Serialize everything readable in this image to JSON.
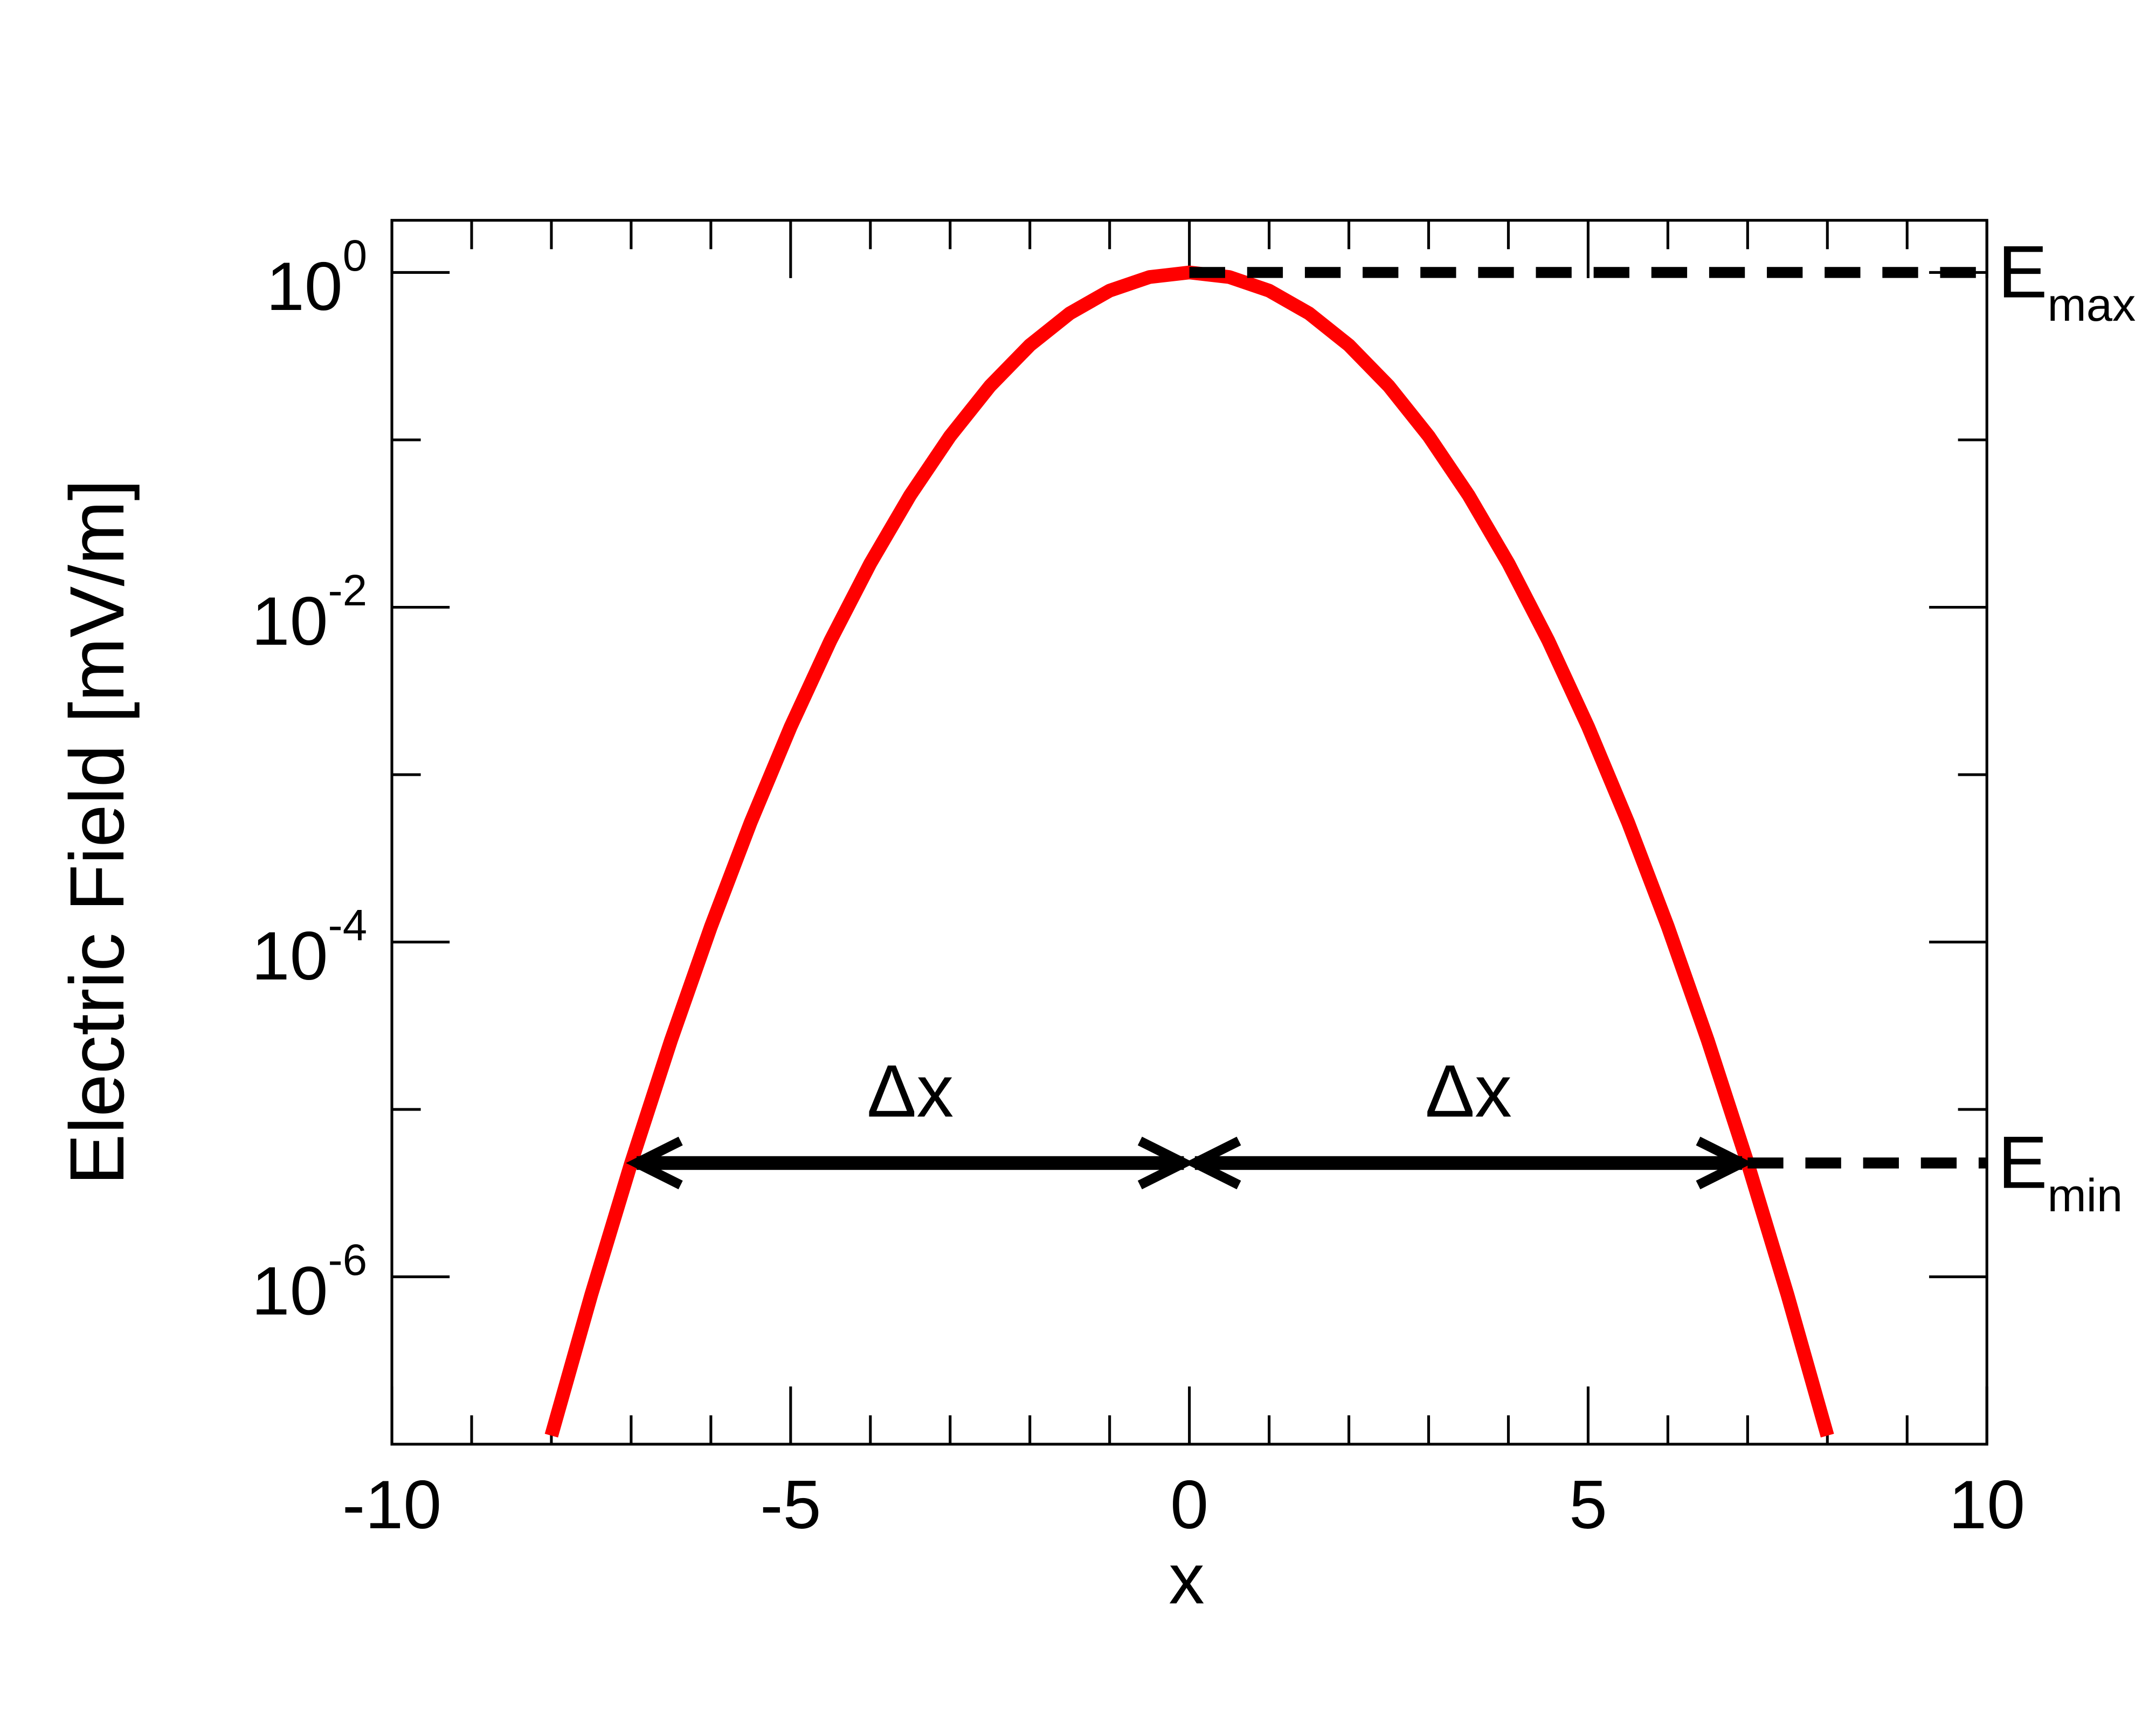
{
  "chart_data": {
    "type": "line",
    "xlabel": "x",
    "ylabel": "Electric Field [mV/m]",
    "xlim": [
      -10,
      10
    ],
    "ylim": [
      1e-07,
      2.05
    ],
    "yscale": "log",
    "xticks": [
      -10,
      -5,
      0,
      5,
      10
    ],
    "xminorticks": [
      -9,
      -8,
      -7,
      -6,
      -4,
      -3,
      -2,
      -1,
      1,
      2,
      3,
      4,
      6,
      7,
      8,
      9
    ],
    "yticks": [
      {
        "value": 1,
        "label": "10",
        "sup": "0"
      },
      {
        "value": 0.01,
        "label": "10",
        "sup": "-2"
      },
      {
        "value": 0.0001,
        "label": "10",
        "sup": "-4"
      },
      {
        "value": 1e-06,
        "label": "10",
        "sup": "-6"
      }
    ],
    "yminorticks": [
      0.1,
      0.001,
      1e-05
    ],
    "series": [
      {
        "color": "#ff0000",
        "x": [
          -8,
          -7.5,
          -7,
          -6.5,
          -6,
          -5.5,
          -5,
          -4.5,
          -4,
          -3.5,
          -3,
          -2.5,
          -2,
          -1.5,
          -1,
          -0.5,
          0,
          0.5,
          1,
          1.5,
          2,
          2.5,
          3,
          3.5,
          4,
          4.5,
          5,
          5.5,
          6,
          6.5,
          7,
          7.5,
          8
        ],
        "values": [
          1.12535e-07,
          7.8079e-07,
          4.7851e-06,
          2.5868e-05,
          0.00012341,
          0.000519795,
          0.00193045,
          0.00632878,
          0.0183156,
          0.0467706,
          0.105399,
          0.209611,
          0.367879,
          0.569783,
          0.778801,
          0.939413,
          1,
          0.939413,
          0.778801,
          0.569783,
          0.367879,
          0.209611,
          0.105399,
          0.0467706,
          0.0183156,
          0.00632878,
          0.00193045,
          0.000519795,
          0.00012341,
          2.5868e-05,
          4.7851e-06,
          7.8079e-07,
          1.12535e-07
        ]
      }
    ],
    "levels": [
      {
        "y": 1,
        "x0": 0,
        "label": "E",
        "sub": "max"
      },
      {
        "y": 4.7851e-06,
        "x0": 7,
        "label": "E",
        "sub": "min"
      }
    ],
    "arrows": [
      {
        "x0": -7,
        "x1": 0,
        "y": 4.7851e-06,
        "label": "Δx"
      },
      {
        "x0": 0,
        "x1": 7,
        "y": 4.7851e-06,
        "label": "Δx"
      }
    ]
  }
}
